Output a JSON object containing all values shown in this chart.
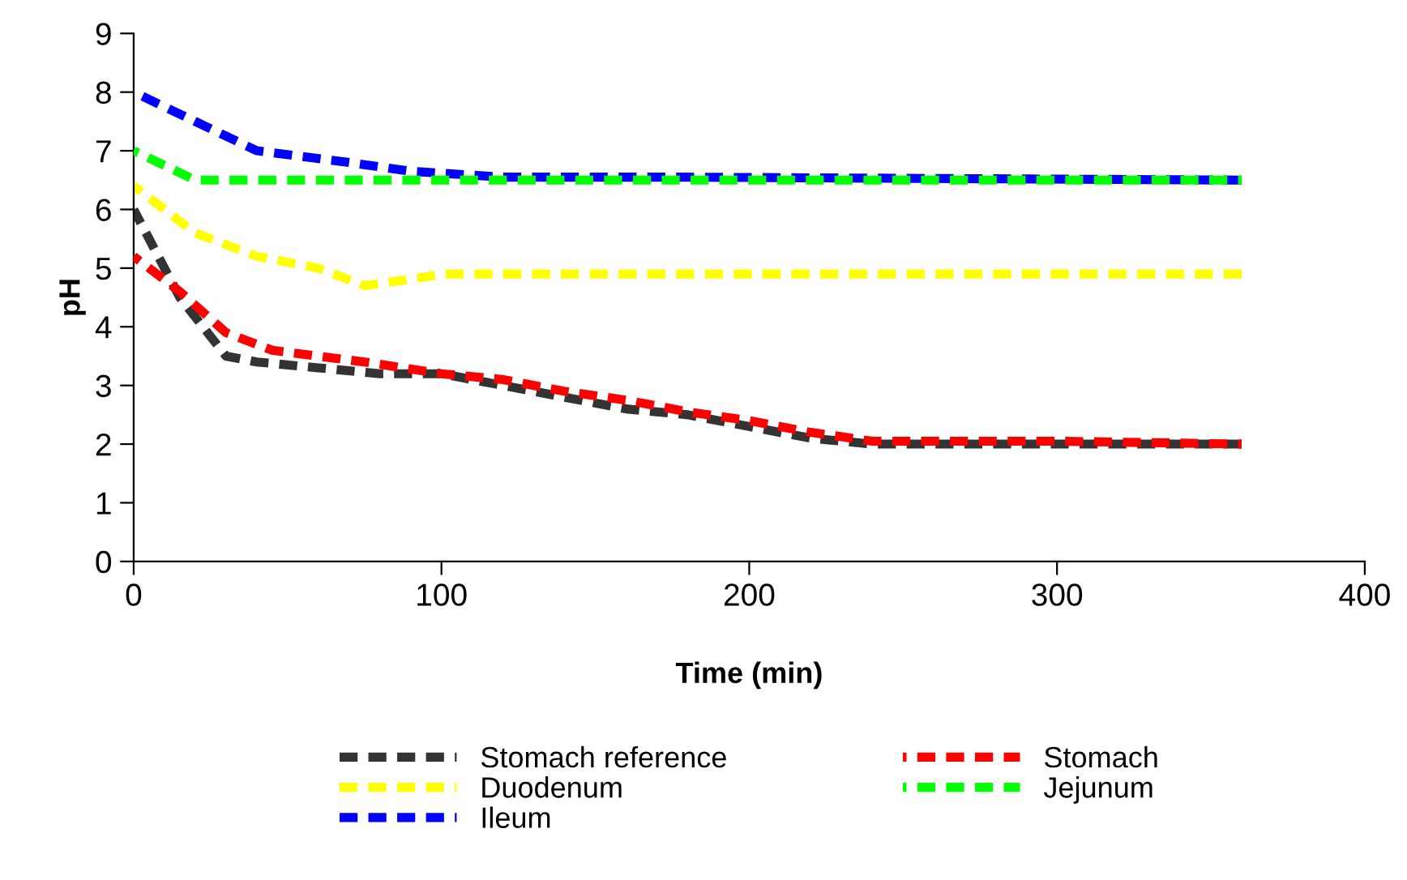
{
  "chart_data": {
    "type": "line",
    "xlabel": "Time (min)",
    "ylabel": "pH",
    "xlim": [
      0,
      400
    ],
    "ylim": [
      0,
      9
    ],
    "xticks": [
      0,
      100,
      200,
      300,
      400
    ],
    "yticks": [
      0,
      1,
      2,
      3,
      4,
      5,
      6,
      7,
      8,
      9
    ],
    "grid": false,
    "legend": "bottom",
    "line_style": "dashed",
    "marker": "none",
    "series": [
      {
        "name": "Stomach reference",
        "color": "#333333",
        "x": [
          0,
          15,
          30,
          40,
          60,
          80,
          100,
          120,
          140,
          160,
          180,
          200,
          220,
          240,
          300,
          360
        ],
        "values": [
          6.0,
          4.5,
          3.5,
          3.4,
          3.3,
          3.2,
          3.2,
          3.0,
          2.8,
          2.6,
          2.5,
          2.3,
          2.1,
          2.0,
          2.0,
          2.0
        ]
      },
      {
        "name": "Stomach",
        "color": "#ff0000",
        "x": [
          0,
          15,
          30,
          45,
          60,
          75,
          100,
          120,
          140,
          160,
          180,
          200,
          220,
          240,
          300,
          360
        ],
        "values": [
          5.2,
          4.6,
          3.9,
          3.6,
          3.5,
          3.4,
          3.2,
          3.1,
          2.9,
          2.75,
          2.55,
          2.4,
          2.2,
          2.05,
          2.05,
          2.0
        ]
      },
      {
        "name": "Duodenum",
        "color": "#ffff00",
        "x": [
          0,
          20,
          40,
          60,
          75,
          95,
          100,
          360
        ],
        "values": [
          6.4,
          5.6,
          5.2,
          5.0,
          4.7,
          4.85,
          4.9,
          4.9
        ]
      },
      {
        "name": "Jejunum",
        "color": "#00ff00",
        "x": [
          0,
          20,
          360
        ],
        "values": [
          7.0,
          6.5,
          6.5
        ]
      },
      {
        "name": "Ileum",
        "color": "#0000ff",
        "x": [
          0,
          20,
          40,
          55,
          70,
          90,
          120,
          180,
          360
        ],
        "values": [
          8.0,
          7.5,
          7.0,
          6.9,
          6.8,
          6.65,
          6.55,
          6.55,
          6.5
        ]
      }
    ]
  }
}
